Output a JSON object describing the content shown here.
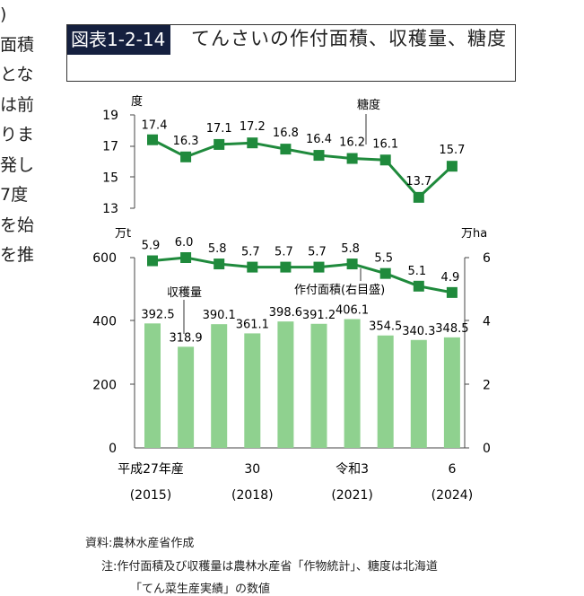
{
  "body_text_fragments": [
    ")",
    "面積",
    "とな",
    "は前",
    "りま",
    "発し",
    "7度",
    "",
    "を始",
    "を推"
  ],
  "figure": {
    "label": "図表1-2-14",
    "title": "てんさいの作付面積、収穫量、糖度"
  },
  "colors": {
    "line": "#1f8a3c",
    "bar": "#8fd18f",
    "figure_label_bg": "#15203f"
  },
  "chart_data": [
    {
      "type": "line",
      "ylabel": "度",
      "ylim": [
        13,
        19
      ],
      "yticks": [
        13,
        15,
        17,
        19
      ],
      "x": [
        "2015",
        "2016",
        "2017",
        "2018",
        "2019",
        "2020",
        "2021",
        "2022",
        "2023",
        "2024"
      ],
      "series": [
        {
          "name": "糖度",
          "values": [
            17.4,
            16.3,
            17.1,
            17.2,
            16.8,
            16.4,
            16.2,
            16.1,
            13.7,
            15.7
          ]
        }
      ]
    },
    {
      "type": "bar+line",
      "ylabel_left": "万t",
      "ylabel_right": "万ha",
      "ylim_left": [
        0,
        600
      ],
      "ylim_right": [
        0,
        6
      ],
      "yticks_left": [
        0,
        200,
        400,
        600
      ],
      "yticks_right": [
        0,
        2,
        4,
        6
      ],
      "x": [
        "2015",
        "2016",
        "2017",
        "2018",
        "2019",
        "2020",
        "2021",
        "2022",
        "2023",
        "2024"
      ],
      "x_tick_labels": [
        {
          "label": "平成27年産",
          "sub": "(2015)"
        },
        {
          "label": "30",
          "sub": "(2018)"
        },
        {
          "label": "令和3",
          "sub": "(2021)"
        },
        {
          "label": "6",
          "sub": "(2024)"
        }
      ],
      "series": [
        {
          "name": "収穫量",
          "type": "bar",
          "axis": "left",
          "values": [
            392.5,
            318.9,
            390.1,
            361.1,
            398.6,
            391.2,
            406.1,
            354.5,
            340.3,
            348.5
          ]
        },
        {
          "name": "作付面積(右目盛)",
          "type": "line",
          "axis": "right",
          "values": [
            5.9,
            6.0,
            5.8,
            5.7,
            5.7,
            5.7,
            5.8,
            5.5,
            5.1,
            4.9
          ]
        }
      ]
    }
  ],
  "notes": {
    "source": "資料:農林水産省作成",
    "note_line1": "注:作付面積及び収穫量は農林水産省「作物統計」、糖度は北海道",
    "note_line2": "「てん菜生産実績」の数値"
  }
}
